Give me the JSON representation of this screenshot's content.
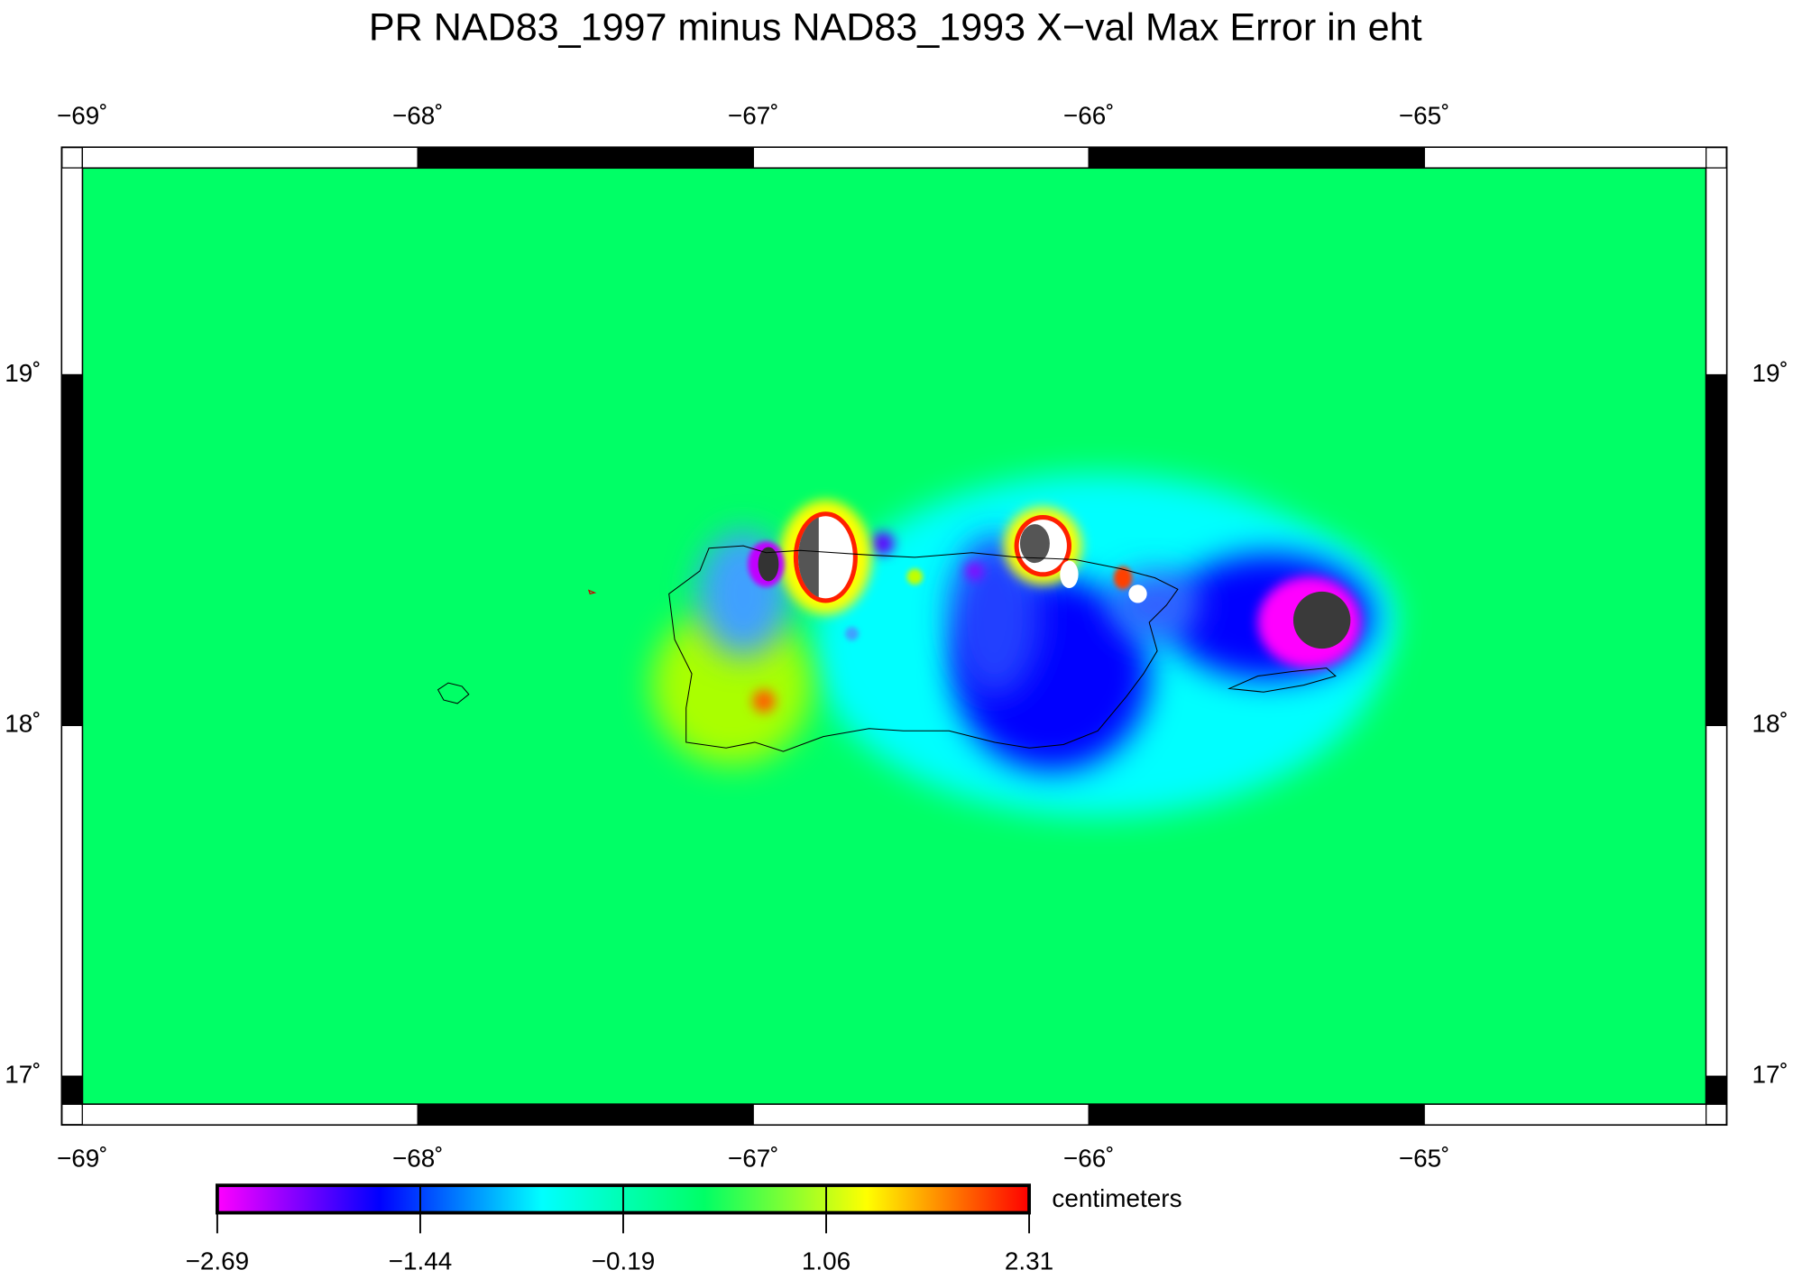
{
  "chart_data": {
    "type": "heatmap",
    "title": "PR NAD83_1997 minus NAD83_1993 X−val Max Error in eht",
    "xlim": [
      -69,
      -64.16
    ],
    "ylim": [
      16.92,
      19.59
    ],
    "xticks": [
      {
        "value": -69,
        "label": "−69˚"
      },
      {
        "value": -68,
        "label": "−68˚"
      },
      {
        "value": -67,
        "label": "−67˚"
      },
      {
        "value": -66,
        "label": "−66˚"
      },
      {
        "value": -65,
        "label": "−65˚"
      }
    ],
    "yticks": [
      {
        "value": 17,
        "label": "17˚"
      },
      {
        "value": 18,
        "label": "18˚"
      },
      {
        "value": 19,
        "label": "19˚"
      }
    ],
    "background_color": "#00ff66",
    "colorbar": {
      "label": "centimeters",
      "clim": [
        -2.69,
        2.31
      ],
      "ticks": [
        {
          "value": -2.69,
          "label": "−2.69"
        },
        {
          "value": -1.44,
          "label": "−1.44"
        },
        {
          "value": -0.19,
          "label": "−0.19"
        },
        {
          "value": 1.06,
          "label": "1.06"
        },
        {
          "value": 2.31,
          "label": "2.31"
        }
      ],
      "colormap": [
        "#ff00ff",
        "#0000ff",
        "#00ffff",
        "#00ff66",
        "#ffff00",
        "#ff0000"
      ]
    }
  }
}
